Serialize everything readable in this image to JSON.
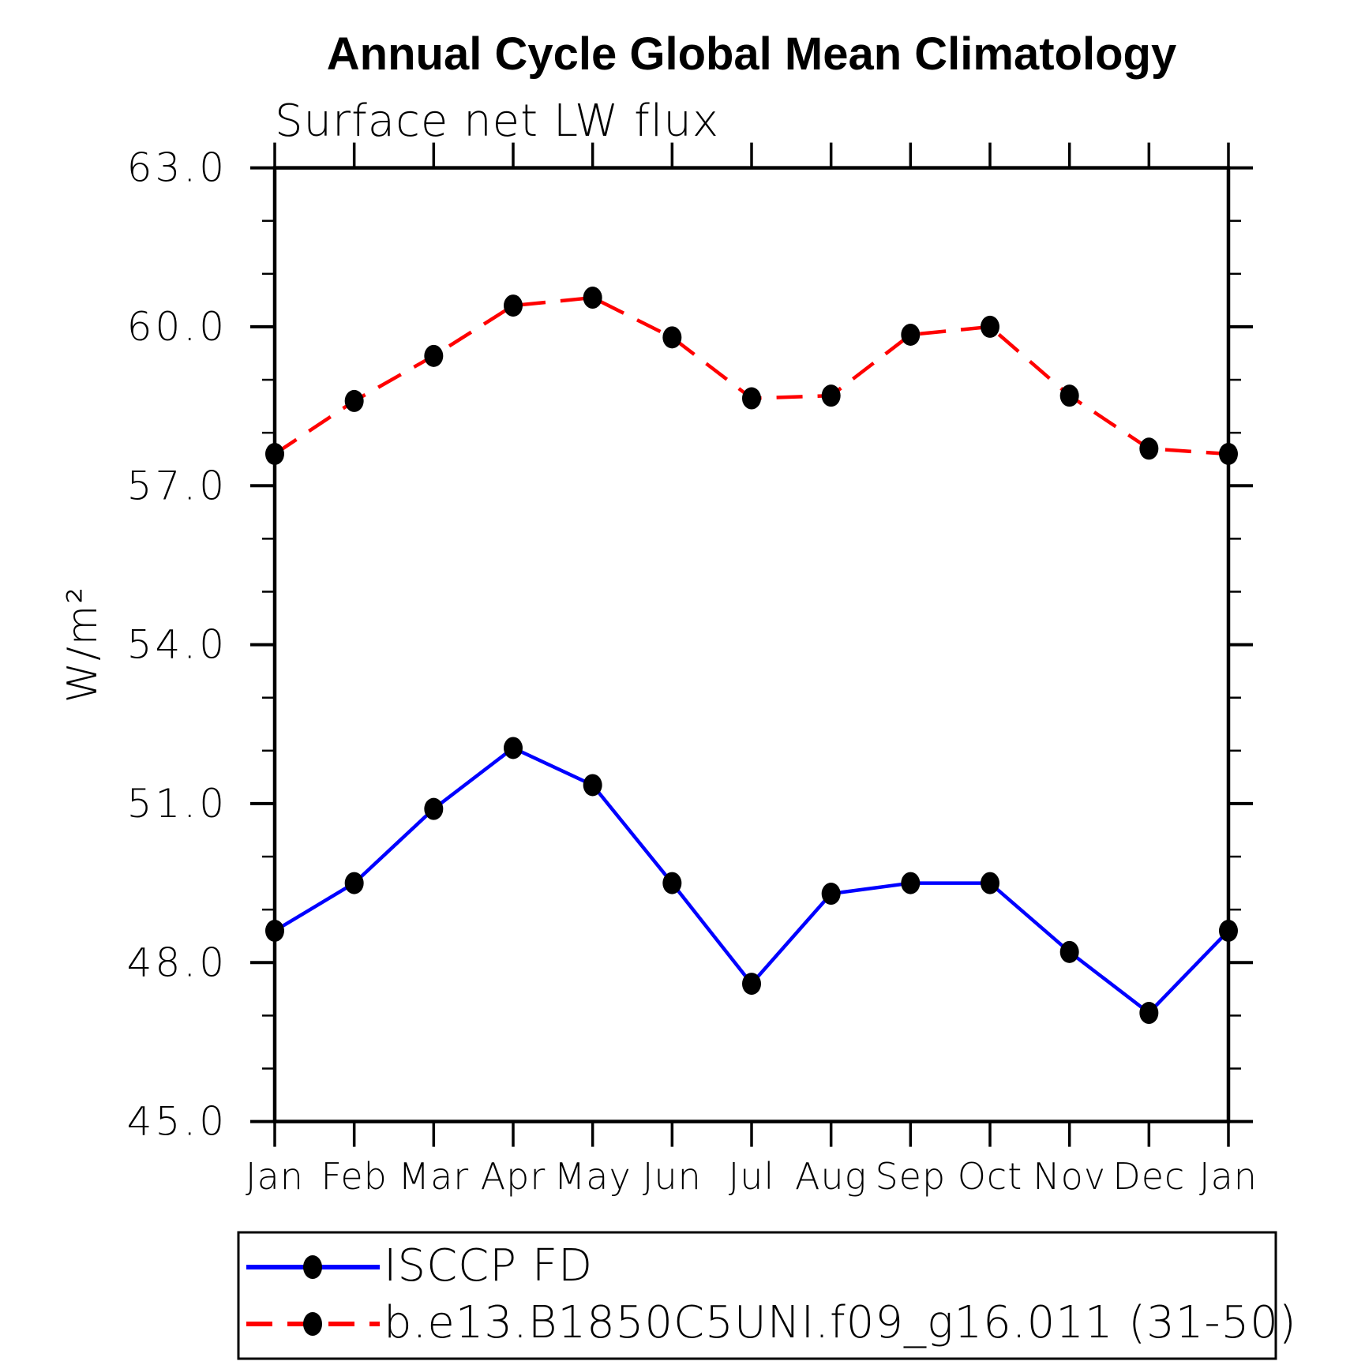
{
  "title": "Annual Cycle Global Mean Climatology",
  "subtitle": "Surface net LW flux",
  "y_axis": {
    "label": "W/m²",
    "tick_labels": [
      "63.0",
      "60.0",
      "57.0",
      "54.0",
      "51.0",
      "48.0",
      "45.0"
    ]
  },
  "x_axis": {
    "tick_labels": [
      "Jan",
      "Feb",
      "Mar",
      "Apr",
      "May",
      "Jun",
      "Jul",
      "Aug",
      "Sep",
      "Oct",
      "Nov",
      "Dec",
      "Jan"
    ]
  },
  "legend": {
    "entries": [
      {
        "label": "ISCCP FD",
        "color": "#0000ff",
        "style": "solid",
        "marker": "filled-circle"
      },
      {
        "label": "b.e13.B1850C5UNI.f09_g16.011 (31-50)",
        "color": "#ff0000",
        "style": "dashed",
        "marker": "filled-circle"
      }
    ]
  },
  "chart_data": {
    "type": "line",
    "title": "Annual Cycle Global Mean Climatology",
    "subtitle": "Surface net LW flux",
    "xlabel": "",
    "ylabel": "W/m²",
    "ylim": [
      45.0,
      63.0
    ],
    "y_major_ticks": [
      45.0,
      48.0,
      51.0,
      54.0,
      57.0,
      60.0,
      63.0
    ],
    "y_minor_step": 1.0,
    "grid": false,
    "legend_position": "bottom-left-box",
    "categories": [
      "Jan",
      "Feb",
      "Mar",
      "Apr",
      "May",
      "Jun",
      "Jul",
      "Aug",
      "Sep",
      "Oct",
      "Nov",
      "Dec",
      "Jan"
    ],
    "series": [
      {
        "name": "ISCCP FD",
        "color": "#0000ff",
        "line_style": "solid",
        "marker": "filled-circle",
        "marker_color": "#000000",
        "values": [
          48.6,
          49.5,
          50.9,
          52.05,
          51.35,
          49.5,
          47.6,
          49.3,
          49.5,
          49.5,
          48.2,
          47.05,
          48.6
        ]
      },
      {
        "name": "b.e13.B1850C5UNI.f09_g16.011 (31-50)",
        "color": "#ff0000",
        "line_style": "dashed",
        "marker": "filled-circle",
        "marker_color": "#000000",
        "values": [
          57.6,
          58.6,
          59.45,
          60.4,
          60.55,
          59.8,
          58.65,
          58.7,
          59.85,
          60.0,
          58.7,
          57.7,
          57.6
        ]
      }
    ]
  }
}
